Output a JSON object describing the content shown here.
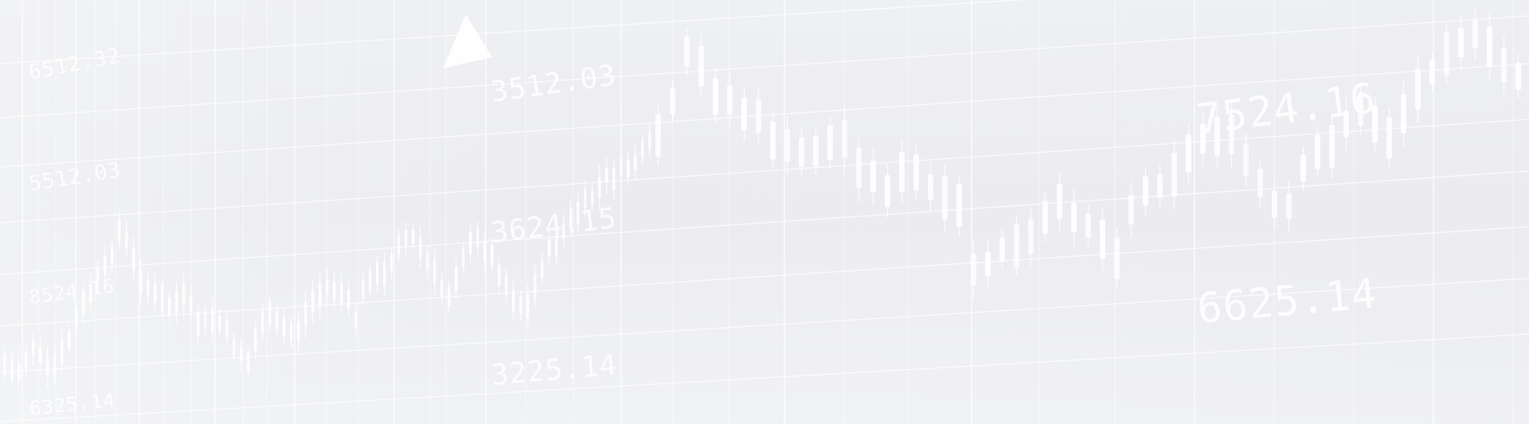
{
  "background": {
    "base_color": "#eeeff2",
    "grid_color": "#ffffff",
    "candle_color": "#ffffff",
    "arrow_color": "#ffffff",
    "arrow_icon": "up-triangle"
  },
  "price_labels": {
    "left_top": "6512.32",
    "left_upper": "5512.03",
    "left_middle": "8524.16",
    "left_bottom": "6325.14",
    "center_top": "3512.03",
    "center_middle": "3624.15",
    "center_bottom": "3225.14",
    "right_top": "7524.16",
    "right_bottom": "6625.14"
  }
}
